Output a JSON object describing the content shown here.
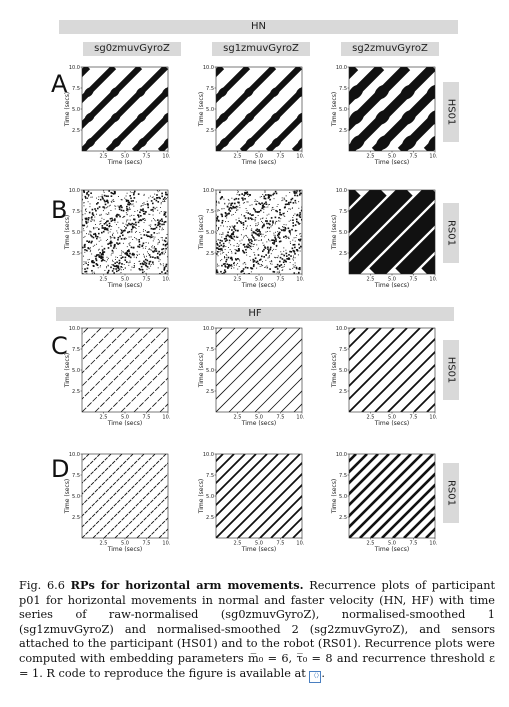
{
  "figure": {
    "top_header": "HN",
    "mid_header": "HF",
    "columns": [
      "sg0zmuvGyroZ",
      "sg1zmuvGyroZ",
      "sg2zmuvGyroZ"
    ],
    "rows": [
      {
        "letter": "A",
        "side": "HS01"
      },
      {
        "letter": "B",
        "side": "RS01"
      },
      {
        "letter": "C",
        "side": "HS01"
      },
      {
        "letter": "D",
        "side": "RS01"
      }
    ],
    "axis": {
      "xlabel": "Time (secs)",
      "ylabel": "Time (secs)",
      "ticks": [
        "2.5",
        "5.0",
        "7.5",
        "10.0"
      ],
      "range": [
        0,
        10
      ]
    }
  },
  "caption": {
    "prefix": "Fig. 6.6 ",
    "bold": "RPs for horizontal arm movements.",
    "text": " Recurrence plots of participant p01 for horizontal movements in normal and faster velocity (HN, HF) with time series of raw-normalised (sg0zmuvGyroZ), normalised-smoothed 1 (sg1zmuvGyroZ) and normalised-smoothed 2 (sg2zmuvGyroZ), and sensors attached to the participant (HS01) and to the robot (RS01). Recurrence plots were computed with embedding parameters m̅₀ = 6, τ̅₀ = 8 and recurrence threshold ε = 1. R code to reproduce the figure is available at ",
    "link_icon": "doi-link-icon"
  }
}
